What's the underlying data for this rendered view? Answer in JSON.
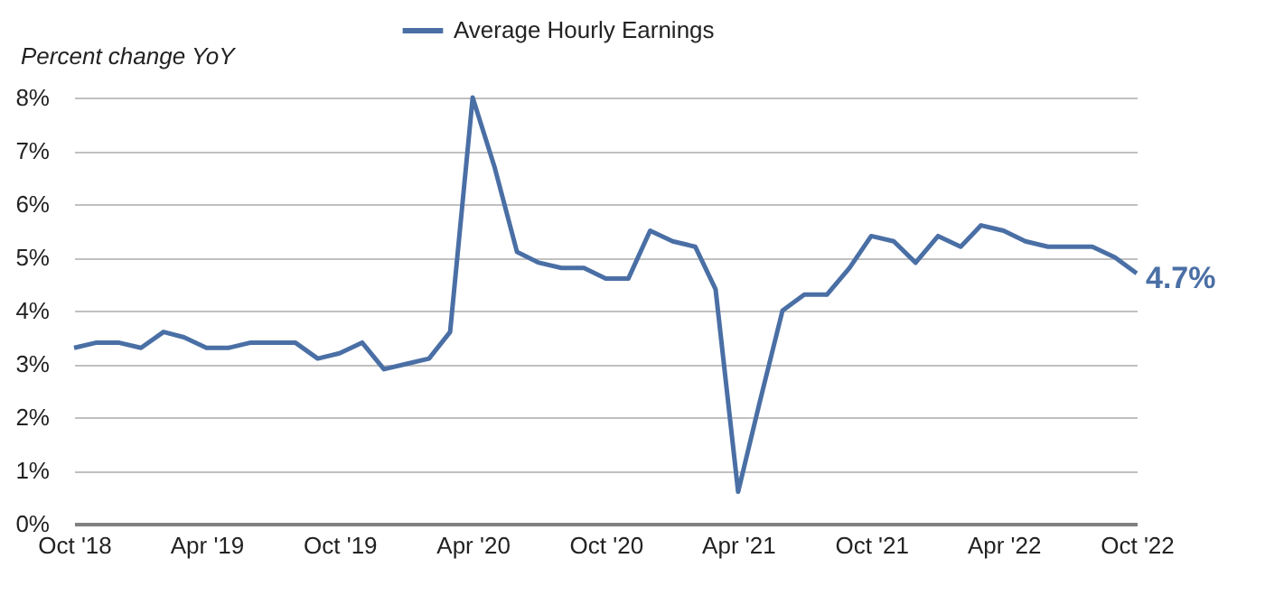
{
  "chart_data": {
    "type": "line",
    "ylabel": "Percent change YoY",
    "x": [
      "2018-10",
      "2018-11",
      "2018-12",
      "2019-01",
      "2019-02",
      "2019-03",
      "2019-04",
      "2019-05",
      "2019-06",
      "2019-07",
      "2019-08",
      "2019-09",
      "2019-10",
      "2019-11",
      "2019-12",
      "2020-01",
      "2020-02",
      "2020-03",
      "2020-04",
      "2020-05",
      "2020-06",
      "2020-07",
      "2020-08",
      "2020-09",
      "2020-10",
      "2020-11",
      "2020-12",
      "2021-01",
      "2021-02",
      "2021-03",
      "2021-04",
      "2021-05",
      "2021-06",
      "2021-07",
      "2021-08",
      "2021-09",
      "2021-10",
      "2021-11",
      "2021-12",
      "2022-01",
      "2022-02",
      "2022-03",
      "2022-04",
      "2022-05",
      "2022-06",
      "2022-07",
      "2022-08",
      "2022-09",
      "2022-10"
    ],
    "series": [
      {
        "name": "Average Hourly Earnings",
        "color": "#4a6fa5",
        "values": [
          3.3,
          3.4,
          3.4,
          3.3,
          3.6,
          3.5,
          3.3,
          3.3,
          3.4,
          3.4,
          3.4,
          3.1,
          3.2,
          3.4,
          2.9,
          3.0,
          3.1,
          3.6,
          8.0,
          6.7,
          5.1,
          4.9,
          4.8,
          4.8,
          4.6,
          4.6,
          5.5,
          5.3,
          5.2,
          4.4,
          0.6,
          2.3,
          4.0,
          4.3,
          4.3,
          4.8,
          5.4,
          5.3,
          4.9,
          5.4,
          5.2,
          5.6,
          5.5,
          5.3,
          5.2,
          5.2,
          5.2,
          5.0,
          4.7
        ]
      }
    ],
    "xlim": [
      "2018-10",
      "2022-10"
    ],
    "xticks": [
      {
        "value": "2018-10",
        "label": "Oct '18"
      },
      {
        "value": "2019-04",
        "label": "Apr '19"
      },
      {
        "value": "2019-10",
        "label": "Oct '19"
      },
      {
        "value": "2020-04",
        "label": "Apr '20"
      },
      {
        "value": "2020-10",
        "label": "Oct '20"
      },
      {
        "value": "2021-04",
        "label": "Apr '21"
      },
      {
        "value": "2021-10",
        "label": "Oct '21"
      },
      {
        "value": "2022-04",
        "label": "Apr '22"
      },
      {
        "value": "2022-10",
        "label": "Oct '22"
      }
    ],
    "ylim": [
      0,
      8
    ],
    "yticks": [
      {
        "value": 0,
        "label": "0%"
      },
      {
        "value": 1,
        "label": "1%"
      },
      {
        "value": 2,
        "label": "2%"
      },
      {
        "value": 3,
        "label": "3%"
      },
      {
        "value": 4,
        "label": "4%"
      },
      {
        "value": 5,
        "label": "5%"
      },
      {
        "value": 6,
        "label": "6%"
      },
      {
        "value": 7,
        "label": "7%"
      },
      {
        "value": 8,
        "label": "8%"
      }
    ],
    "annotations": [
      {
        "text": "4.7%",
        "x": "2022-10",
        "y": 4.7
      }
    ],
    "grid": "y",
    "legend": "top",
    "marker": "none",
    "line_style": "solid"
  }
}
